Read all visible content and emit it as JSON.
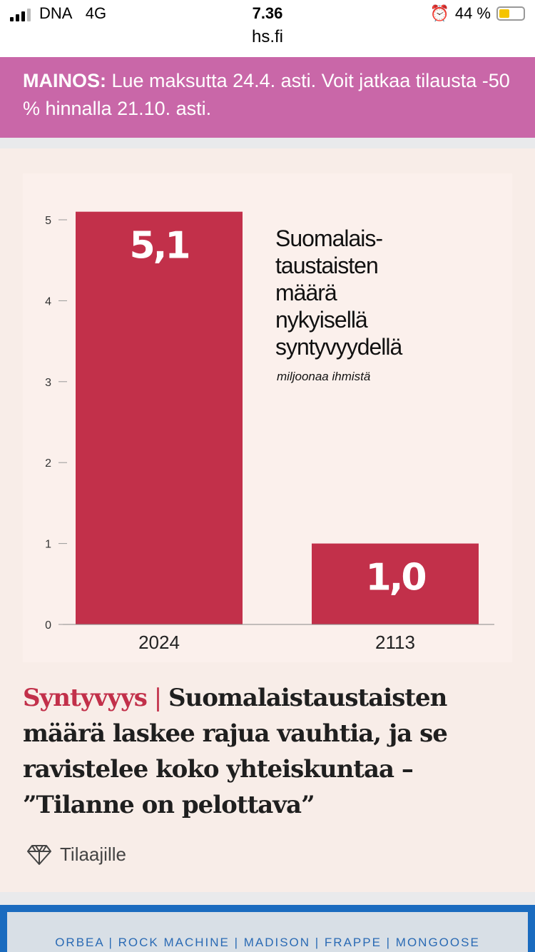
{
  "status_bar": {
    "carrier": "DNA",
    "network": "4G",
    "time": "7.36",
    "url": "hs.fi",
    "battery": "44 %",
    "battery_level": 0.44
  },
  "ad_banner": {
    "label": "MAINOS:",
    "text": " Lue maksutta 24.4. asti. Voit jatkaa tilausta -50 % hinnalla 21.10. asti."
  },
  "article": {
    "kicker": "Syntyvyys",
    "separator": " | ",
    "title": "Suomalaistaustaisten määrä laskee rajua vauhtia, ja se ravistelee koko yhteiskuntaa – ”Tilanne on pelottava”",
    "access": "Tilaajille"
  },
  "chart_data": {
    "type": "bar",
    "categories": [
      "2024",
      "2113"
    ],
    "values": [
      5.1,
      1.0
    ],
    "data_labels": [
      "5,1",
      "1,0"
    ],
    "title_lines": [
      "Suomalais-",
      "taustaisten",
      "määrä",
      "nykyisellä",
      "syntyvyydellä"
    ],
    "subtitle": "miljoonaa ihmistä",
    "ylim": [
      0,
      5
    ],
    "yticks": [
      "0",
      "1",
      "2",
      "3",
      "4",
      "5"
    ],
    "bar_color": "#c2304a"
  },
  "bottom_ad": {
    "text": "ORBEA | ROCK MACHINE | MADISON | FRAPPE | MONGOOSE"
  }
}
